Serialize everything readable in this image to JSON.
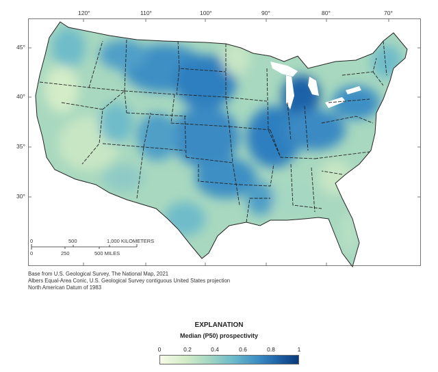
{
  "map": {
    "longitude_labels": [
      "120°",
      "110°",
      "100°",
      "90°",
      "80°",
      "70°"
    ],
    "latitude_labels": [
      "45°",
      "40°",
      "35°",
      "30°"
    ],
    "palette": [
      "#f7fbe8",
      "#d4ecc8",
      "#a5d7c3",
      "#6fbcc9",
      "#3e8fc4",
      "#1f62a8",
      "#0b3a7a"
    ]
  },
  "scale_bar": {
    "km_labels": [
      "0",
      "500",
      "1,000 KILOMETERS"
    ],
    "mile_labels": [
      "0",
      "250",
      "500 MILES"
    ]
  },
  "credits": [
    "Base from U.S. Geological Survey, The National Map, 2021",
    "Albers Equal-Area Conic, U.S. Geological Survey contiguous United States projection",
    "North American Datum of 1983"
  ],
  "legend": {
    "heading": "EXPLANATION",
    "subtitle": "Median (P50) prospectivity",
    "ticks": [
      "0",
      "0.2",
      "0.4",
      "0.6",
      "0.8",
      "1"
    ],
    "range": [
      0,
      1
    ]
  }
}
